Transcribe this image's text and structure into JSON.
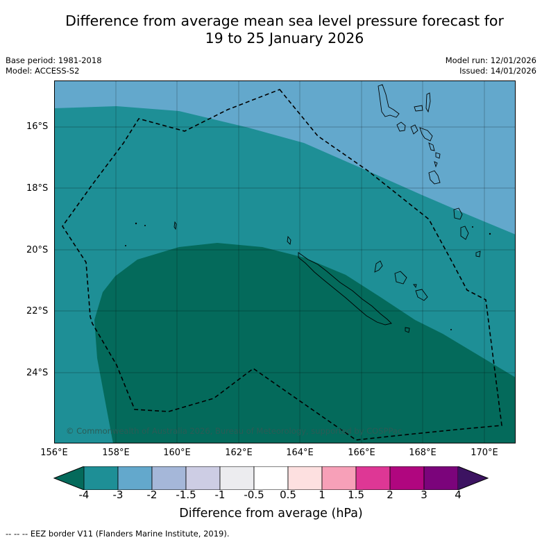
{
  "title": {
    "line1": "Difference from average mean sea level pressure forecast for",
    "line2": "19 to 25 January 2026"
  },
  "meta": {
    "base_period": "Base period: 1981-2018",
    "model": "Model: ACCESS-S2",
    "model_run": "Model run: 12/01/2026",
    "issued": "Issued: 14/01/2026"
  },
  "map": {
    "lon_range": [
      156,
      171
    ],
    "lat_range": [
      -26.2,
      -14.4
    ],
    "lat_ticks": [
      "16°S",
      "18°S",
      "20°S",
      "22°S",
      "24°S"
    ],
    "lon_ticks": [
      "156°E",
      "158°E",
      "160°E",
      "162°E",
      "164°E",
      "166°E",
      "168°E",
      "170°E"
    ],
    "copyright": "© Commonwealth of Australia 2026, Bureau of Meteorology, supported by COSPPac",
    "anomaly_bands": [
      {
        "range": "-3 to -2 hPa",
        "region": "north-east"
      },
      {
        "range": "-4 to -3 hPa",
        "region": "central band"
      },
      {
        "range": "< -4 hPa",
        "region": "south, around New Caledonia"
      }
    ]
  },
  "colorbar": {
    "title": "Difference from average (hPa)",
    "ticks": [
      "-4",
      "-3",
      "-2",
      "-1.5",
      "-1",
      "-0.5",
      "0.5",
      "1",
      "1.5",
      "2",
      "3",
      "4"
    ],
    "under_color": "#046a5b",
    "over_color": "#3c1361",
    "colors": [
      "#1e8f96",
      "#63a8cc",
      "#a5b7d9",
      "#cdcde4",
      "#ececef",
      "#ffffff",
      "#fde0e0",
      "#f7a0b8",
      "#de3795",
      "#b0067f",
      "#7b047b"
    ]
  },
  "footer": {
    "eez_note": "--  --  -- EEZ border V11 (Flanders Marine Institute, 2019)."
  }
}
